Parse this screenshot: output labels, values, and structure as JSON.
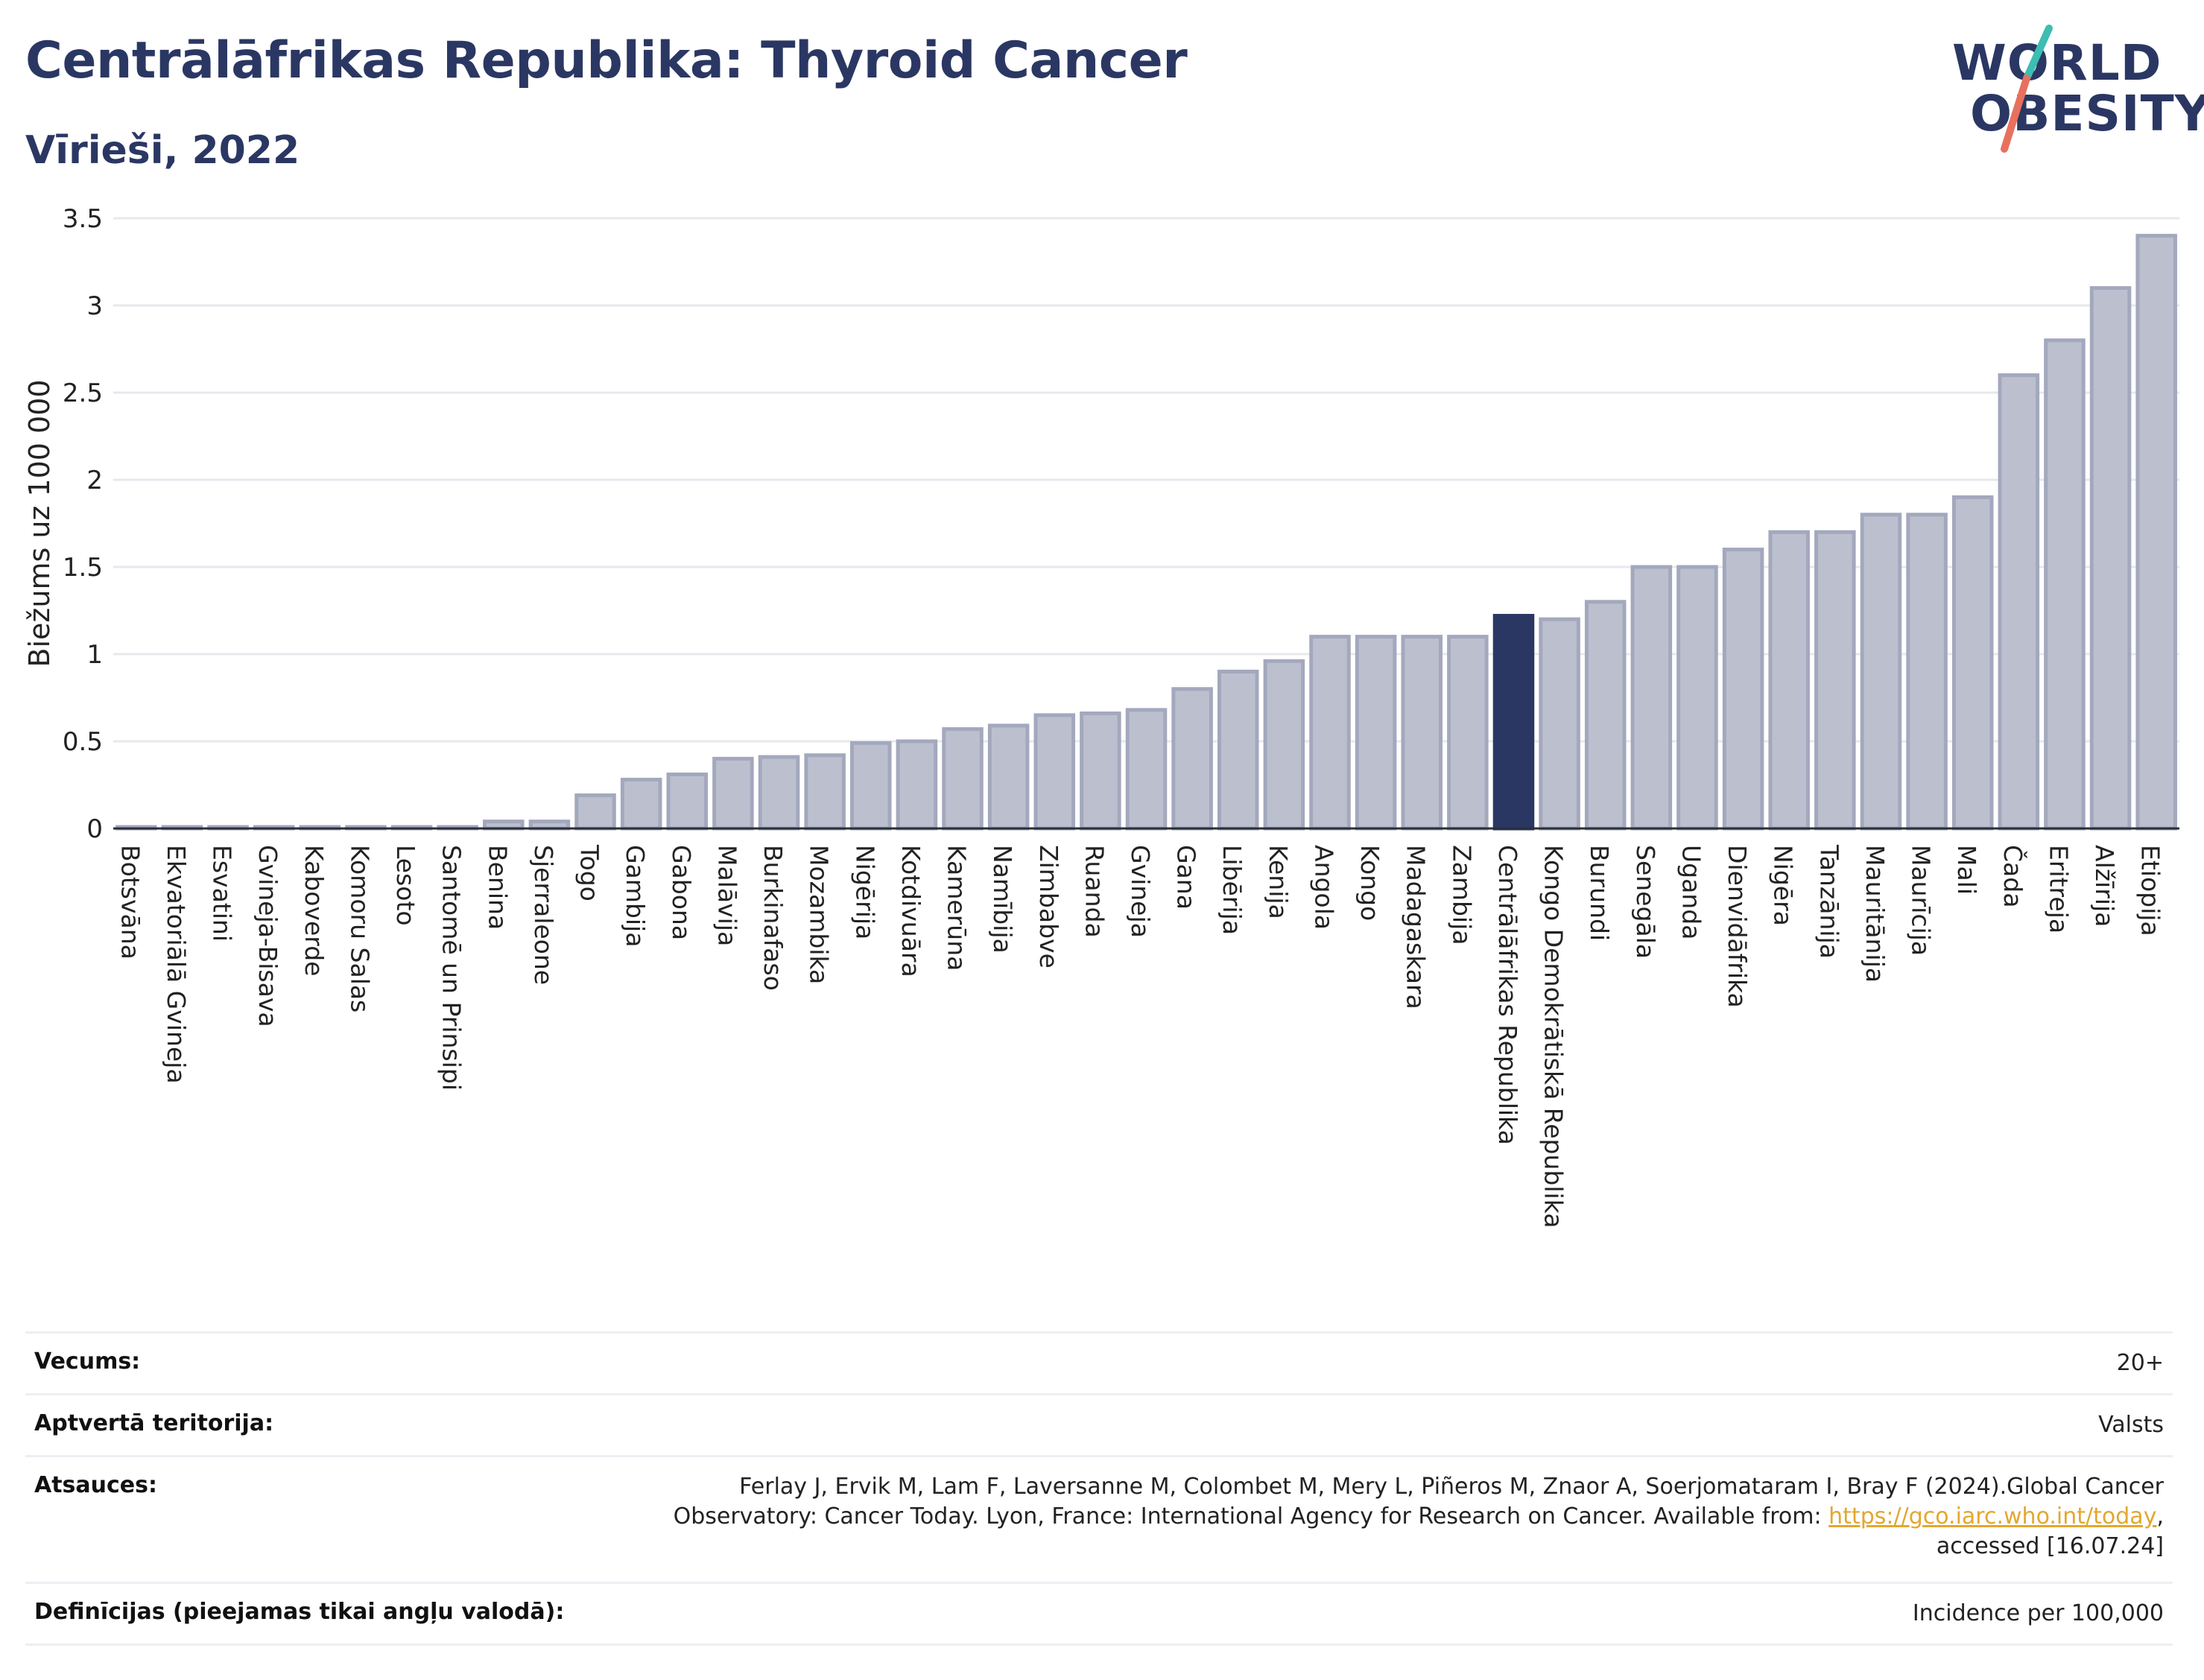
{
  "header": {
    "title": "Centrālāfrikas Republika: Thyroid Cancer",
    "subtitle": "Vīrieši, 2022"
  },
  "logo": {
    "line1": "WORLD",
    "line2": "OBESITY"
  },
  "colors": {
    "title": "#2b3763",
    "bar_fill": "#bcc0ce",
    "bar_stroke": "#a3a8bd",
    "highlight": "#2b3763",
    "logo_teal": "#3dbdb3",
    "logo_coral": "#e8705f",
    "link": "#e3a72f"
  },
  "chart_data": {
    "type": "bar",
    "title": "Centrālāfrikas Republika: Thyroid Cancer",
    "subtitle": "Vīrieši, 2022",
    "ylabel": "Biežums uz 100 000",
    "xlabel": "",
    "ylim": [
      0,
      3.5
    ],
    "yticks": [
      0,
      0.5,
      1,
      1.5,
      2,
      2.5,
      3,
      3.5
    ],
    "ytick_labels": [
      "0",
      "0.5",
      "1",
      "1.5",
      "2",
      "2.5",
      "3",
      "3.5"
    ],
    "grid": true,
    "highlight": "Centrālāfrikas Republika",
    "categories": [
      "Botsvāna",
      "Ekvatoriālā Gvineja",
      "Esvatini",
      "Gvineja-Bisava",
      "Kaboverde",
      "Komoru Salas",
      "Lesoto",
      "Santomē un Prinsipi",
      "Benina",
      "Sjerraleone",
      "Togo",
      "Gambija",
      "Gabona",
      "Malāvija",
      "Burkinafaso",
      "Mozambika",
      "Nigērija",
      "Kotdivuāra",
      "Kamerūna",
      "Namībija",
      "Zimbabve",
      "Ruanda",
      "Gvineja",
      "Gana",
      "Libērija",
      "Kenija",
      "Angola",
      "Kongo",
      "Madagaskara",
      "Zambija",
      "Centrālāfrikas Republika",
      "Kongo Demokrātiskā Republika",
      "Burundi",
      "Senegāla",
      "Uganda",
      "Dienvidāfrika",
      "Nigēra",
      "Tanzānija",
      "Mauritānija",
      "Maurīcija",
      "Mali",
      "Čada",
      "Eritreja",
      "Alžīrija",
      "Etiopija"
    ],
    "values": [
      0.0,
      0.0,
      0.0,
      0.0,
      0.0,
      0.0,
      0.0,
      0.0,
      0.04,
      0.04,
      0.19,
      0.28,
      0.31,
      0.4,
      0.41,
      0.42,
      0.49,
      0.5,
      0.57,
      0.59,
      0.65,
      0.66,
      0.68,
      0.8,
      0.9,
      0.96,
      1.1,
      1.1,
      1.1,
      1.1,
      1.22,
      1.2,
      1.3,
      1.5,
      1.5,
      1.6,
      1.7,
      1.7,
      1.8,
      1.8,
      1.9,
      2.6,
      2.8,
      3.1,
      3.4
    ]
  },
  "info": {
    "age_label": "Vecums:",
    "age_value": "20+",
    "area_label": "Aptvertā teritorija:",
    "area_value": "Valsts",
    "refs_label": "Atsauces:",
    "refs_line1": "Ferlay J, Ervik M, Lam F, Laversanne M, Colombet M, Mery L, Piñeros M, Znaor A, Soerjomataram I, Bray F (2024).Global Cancer",
    "refs_line2_pre": "Observatory: Cancer Today. Lyon, France: International Agency for Research on Cancer. Available from: ",
    "refs_link": "https://gco.iarc.who.int/today",
    "refs_line2_post": ",",
    "refs_line3": "accessed [16.07.24]",
    "defs_label": "Definīcijas (pieejamas tikai angļu valodā):",
    "defs_value": "Incidence per 100,000"
  }
}
